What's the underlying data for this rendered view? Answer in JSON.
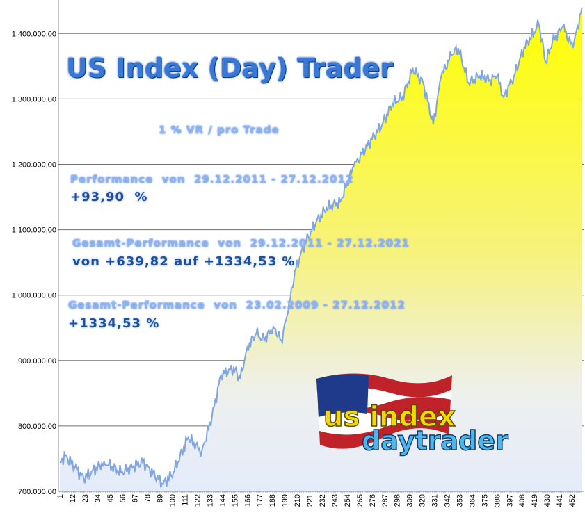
{
  "chart_data": {
    "type": "area",
    "title": "US Index (Day) Trader",
    "subtitle": "1 % VR / pro Trade",
    "xlabel": "",
    "ylabel": "",
    "xlim": [
      1,
      461
    ],
    "ylim": [
      700000,
      1450000
    ],
    "y_ticks": [
      "700.000,00",
      "800.000,00",
      "900.000,00",
      "1.000.000,00",
      "1.100.000,00",
      "1.200.000,00",
      "1.300.000,00",
      "1.400.000,00"
    ],
    "y_tick_values": [
      700000,
      800000,
      900000,
      1000000,
      1100000,
      1200000,
      1300000,
      1400000
    ],
    "x_ticks": [
      "1",
      "12",
      "23",
      "34",
      "45",
      "56",
      "67",
      "78",
      "89",
      "100",
      "111",
      "122",
      "133",
      "144",
      "155",
      "166",
      "177",
      "188",
      "199",
      "210",
      "221",
      "232",
      "243",
      "254",
      "265",
      "276",
      "287",
      "298",
      "309",
      "320",
      "331",
      "342",
      "353",
      "364",
      "375",
      "386",
      "397",
      "408",
      "419",
      "430",
      "441",
      "452"
    ],
    "grid": "horizontal",
    "fill_colors": [
      "#ffff00",
      "#e8eefc"
    ],
    "line_color": "#7fa6e0",
    "series": [
      {
        "x": [
          1,
          6,
          22,
          40,
          55,
          74,
          92,
          101,
          114,
          126,
          135,
          143,
          154,
          160,
          166,
          174,
          181,
          189,
          196,
          202,
          208,
          217,
          227,
          236,
          248,
          260,
          272,
          285,
          294,
          303,
          312,
          321,
          330,
          337,
          346,
          352,
          361,
          371,
          380,
          386,
          392,
          401,
          410,
          423,
          429,
          435,
          444,
          453,
          461
        ],
        "values": [
          744600,
          755000,
          720000,
          745000,
          729000,
          745000,
          711000,
          729000,
          782000,
          761000,
          814000,
          878000,
          888000,
          872000,
          920000,
          941000,
          931000,
          952000,
          931000,
          973000,
          1037000,
          1080000,
          1112000,
          1133000,
          1143000,
          1197000,
          1229000,
          1261000,
          1293000,
          1303000,
          1346000,
          1325000,
          1261000,
          1335000,
          1367000,
          1378000,
          1325000,
          1335000,
          1329000,
          1335000,
          1303000,
          1335000,
          1378000,
          1414000,
          1356000,
          1388000,
          1410000,
          1378000,
          1440000
        ]
      }
    ],
    "annotations": [
      {
        "label": "Performance  von  29.12.2011 - 27.12.2012",
        "value": "+93,90  %"
      },
      {
        "label": "Gesamt-Performance  von  29.12.2011 - 27.12.2021",
        "value": "von +639,82 auf +1334,53 %"
      },
      {
        "label": "Gesamt-Performance  von  23.02.2009 - 27.12.2012",
        "value": "+1334,53 %"
      }
    ]
  },
  "logo": {
    "text_top": "us index",
    "text_bottom": "daytrader"
  }
}
